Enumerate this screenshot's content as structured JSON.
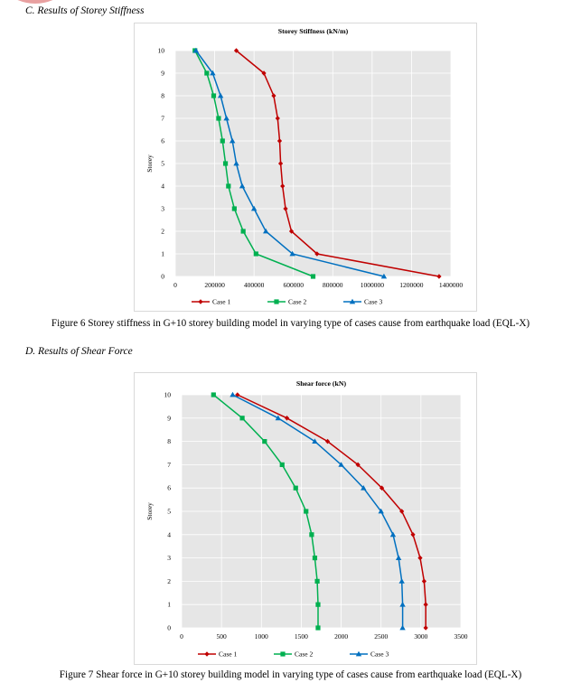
{
  "page": {
    "heading_c": "C.   Results of Storey Stiffness",
    "heading_d": "D.   Results of Shear Force",
    "caption_fig6": "Figure 6 Storey stiffness in G+10 storey building model in varying type of cases cause from earthquake load (EQL-X)",
    "caption_fig7": "Figure 7 Shear force in G+10 storey building model in varying type of cases cause from earthquake load (EQL-X)"
  },
  "chart_data": [
    {
      "type": "line",
      "title": "Storey Stiffness (kN/m)",
      "xlabel": "",
      "ylabel": "Storey",
      "xlim": [
        0,
        1400000
      ],
      "ylim": [
        0,
        10
      ],
      "x_ticks": [
        0,
        200000,
        400000,
        600000,
        800000,
        1000000,
        1200000,
        1400000
      ],
      "y_ticks": [
        0,
        1,
        2,
        3,
        4,
        5,
        6,
        7,
        8,
        9,
        10
      ],
      "grid": true,
      "legend_position": "bottom",
      "storeys": [
        10,
        9,
        8,
        7,
        6,
        5,
        4,
        3,
        2,
        1,
        0
      ],
      "series": [
        {
          "name": "Case 1",
          "color": "#c00000",
          "marker": "diamond",
          "values": [
            310000,
            450000,
            500000,
            520000,
            530000,
            535000,
            545000,
            560000,
            590000,
            720000,
            1340000
          ]
        },
        {
          "name": "Case 2",
          "color": "#00b050",
          "marker": "square",
          "values": [
            100000,
            160000,
            195000,
            220000,
            240000,
            255000,
            270000,
            300000,
            345000,
            410000,
            700000
          ]
        },
        {
          "name": "Case 3",
          "color": "#0070c0",
          "marker": "triangle",
          "values": [
            105000,
            190000,
            230000,
            260000,
            290000,
            310000,
            340000,
            400000,
            460000,
            595000,
            1060000
          ]
        }
      ]
    },
    {
      "type": "line",
      "title": "Shear force (kN)",
      "xlabel": "",
      "ylabel": "Storey",
      "xlim": [
        0,
        3500
      ],
      "ylim": [
        0,
        10
      ],
      "x_ticks": [
        0,
        500,
        1000,
        1500,
        2000,
        2500,
        3000,
        3500
      ],
      "y_ticks": [
        0,
        1,
        2,
        3,
        4,
        5,
        6,
        7,
        8,
        9,
        10
      ],
      "grid": true,
      "legend_position": "bottom",
      "storeys": [
        10,
        9,
        8,
        7,
        6,
        5,
        4,
        3,
        2,
        1,
        0
      ],
      "series": [
        {
          "name": "Case 1",
          "color": "#c00000",
          "marker": "diamond",
          "values": [
            700,
            1320,
            1830,
            2210,
            2510,
            2760,
            2900,
            2990,
            3040,
            3060,
            3060
          ]
        },
        {
          "name": "Case 2",
          "color": "#00b050",
          "marker": "square",
          "values": [
            400,
            760,
            1040,
            1260,
            1430,
            1560,
            1630,
            1670,
            1700,
            1710,
            1710
          ]
        },
        {
          "name": "Case 3",
          "color": "#0070c0",
          "marker": "triangle",
          "values": [
            640,
            1210,
            1670,
            2000,
            2280,
            2500,
            2650,
            2720,
            2760,
            2770,
            2770
          ]
        }
      ]
    }
  ]
}
